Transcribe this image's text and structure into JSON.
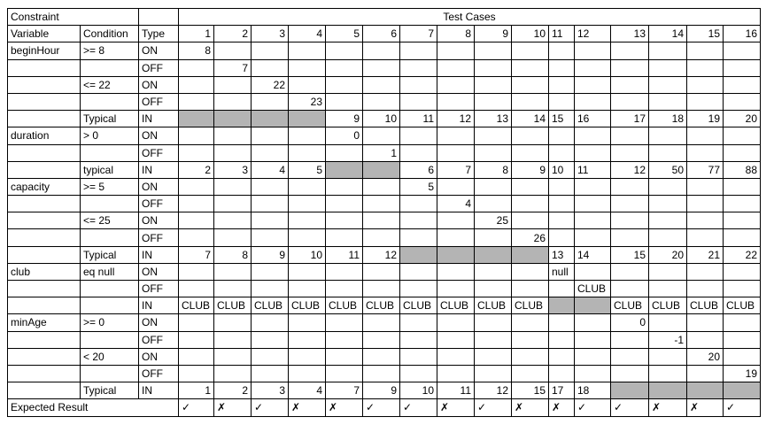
{
  "header": {
    "constraint": "Constraint",
    "test_cases": "Test Cases",
    "variable": "Variable",
    "condition": "Condition",
    "type": "Type",
    "case_numbers": [
      "1",
      "2",
      "3",
      "4",
      "5",
      "6",
      "7",
      "8",
      "9",
      "10",
      "11",
      "12",
      "13",
      "14",
      "15",
      "16"
    ]
  },
  "groups": [
    {
      "variable": "beginHour",
      "rows": [
        {
          "condition": ">= 8",
          "type": "ON",
          "cells": {
            "1": "8"
          }
        },
        {
          "condition": "",
          "type": "OFF",
          "cells": {
            "2": "7"
          }
        },
        {
          "condition": "<= 22",
          "type": "ON",
          "cells": {
            "3": "22"
          }
        },
        {
          "condition": "",
          "type": "OFF",
          "cells": {
            "4": "23"
          }
        },
        {
          "condition": "Typical",
          "type": "IN",
          "shaded": [
            1,
            2,
            3,
            4
          ],
          "cells": {
            "5": "9",
            "6": "10",
            "7": "11",
            "8": "12",
            "9": "13",
            "10": "14",
            "11": "15",
            "12": "16",
            "13": "17",
            "14": "18",
            "15": "19",
            "16": "20"
          }
        }
      ]
    },
    {
      "variable": "duration",
      "rows": [
        {
          "condition": "> 0",
          "type": "ON",
          "cells": {
            "5": "0"
          }
        },
        {
          "condition": "",
          "type": "OFF",
          "cells": {
            "6": "1"
          }
        },
        {
          "condition": "typical",
          "type": "IN",
          "shaded": [
            5,
            6
          ],
          "cells": {
            "1": "2",
            "2": "3",
            "3": "4",
            "4": "5",
            "7": "6",
            "8": "7",
            "9": "8",
            "10": "9",
            "11": "10",
            "12": "11",
            "13": "12",
            "14": "50",
            "15": "77",
            "16": "88"
          }
        }
      ]
    },
    {
      "variable": "capacity",
      "rows": [
        {
          "condition": ">= 5",
          "type": "ON",
          "cells": {
            "7": "5"
          }
        },
        {
          "condition": "",
          "type": "OFF",
          "cells": {
            "8": "4"
          }
        },
        {
          "condition": "<= 25",
          "type": "ON",
          "cells": {
            "9": "25"
          }
        },
        {
          "condition": "",
          "type": "OFF",
          "cells": {
            "10": "26"
          }
        },
        {
          "condition": "Typical",
          "type": "IN",
          "shaded": [
            7,
            8,
            9,
            10
          ],
          "cells": {
            "1": "7",
            "2": "8",
            "3": "9",
            "4": "10",
            "5": "11",
            "6": "12",
            "11": "13",
            "12": "14",
            "13": "15",
            "14": "20",
            "15": "21",
            "16": "22"
          }
        }
      ]
    },
    {
      "variable": "club",
      "rows": [
        {
          "condition": " eq null",
          "type": "ON",
          "cells": {
            "11": "null"
          }
        },
        {
          "condition": "",
          "type": "OFF",
          "cells": {
            "12": "CLUB"
          }
        },
        {
          "condition": "",
          "type": "IN",
          "shaded": [
            11,
            12
          ],
          "cells": {
            "1": "CLUB",
            "2": "CLUB",
            "3": "CLUB",
            "4": "CLUB",
            "5": "CLUB",
            "6": "CLUB",
            "7": "CLUB",
            "8": "CLUB",
            "9": "CLUB",
            "10": "CLUB",
            "13": "CLUB",
            "14": "CLUB",
            "15": "CLUB",
            "16": "CLUB"
          }
        }
      ]
    },
    {
      "variable": "minAge",
      "rows": [
        {
          "condition": ">= 0",
          "type": "ON",
          "cells": {
            "13": "0"
          }
        },
        {
          "condition": "",
          "type": "OFF",
          "cells": {
            "14": "-1"
          }
        },
        {
          "condition": "< 20",
          "type": "ON",
          "cells": {
            "15": "20"
          }
        },
        {
          "condition": "",
          "type": "OFF",
          "cells": {
            "16": "19"
          }
        },
        {
          "condition": "Typical",
          "type": "IN",
          "shaded": [
            13,
            14,
            15,
            16
          ],
          "cells": {
            "1": "1",
            "2": "2",
            "3": "3",
            "4": "4",
            "5": "7",
            "6": "9",
            "7": "10",
            "8": "11",
            "9": "12",
            "10": "15",
            "11": "17",
            "12": "18"
          }
        }
      ]
    }
  ],
  "expected": {
    "label": "Expected Result",
    "marks": [
      "✓",
      "✗",
      "✓",
      "✗",
      "✗",
      "✓",
      "✓",
      "✗",
      "✓",
      "✗",
      "✗",
      "✓",
      "✓",
      "✗",
      "✗",
      "✓"
    ]
  },
  "center_columns": [
    "11",
    "12"
  ]
}
